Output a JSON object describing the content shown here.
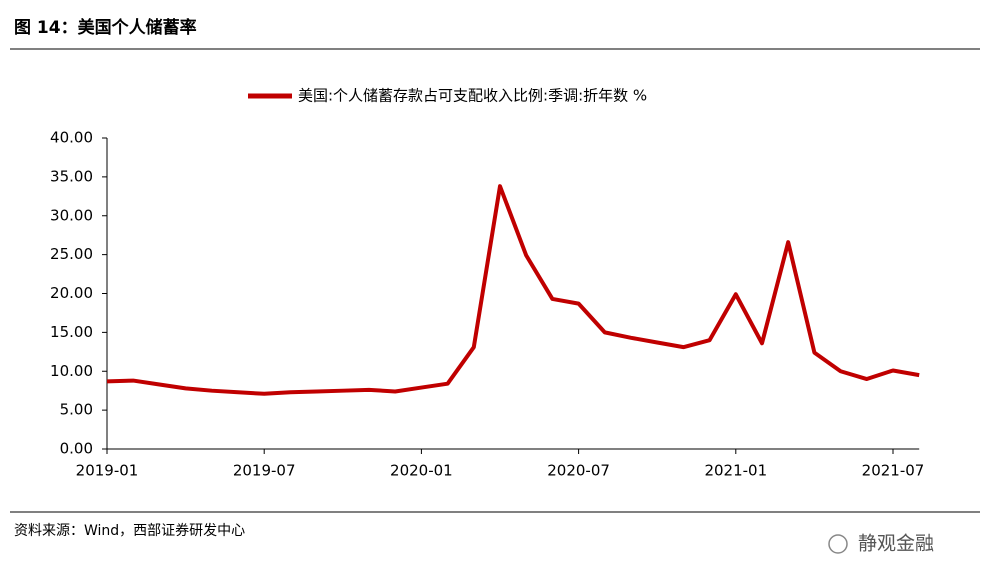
{
  "header": {
    "title": "图 14：美国个人储蓄率"
  },
  "chart_data": {
    "type": "line",
    "categories": [
      "2019-01",
      null,
      null,
      null,
      null,
      null,
      "2019-07",
      null,
      null,
      null,
      null,
      null,
      "2020-01",
      null,
      null,
      null,
      null,
      null,
      "2020-07",
      null,
      null,
      null,
      null,
      null,
      "2021-01",
      null,
      null,
      null,
      null,
      null,
      "2021-07",
      null
    ],
    "series": [
      {
        "name": "美国:个人储蓄存款占可支配收入比例:季调:折年数 %",
        "color": "#c00000",
        "values": [
          8.7,
          8.8,
          8.3,
          7.8,
          7.5,
          7.3,
          7.1,
          7.3,
          7.4,
          7.5,
          7.6,
          7.4,
          7.9,
          8.4,
          13.1,
          33.8,
          24.9,
          19.3,
          18.7,
          15.0,
          14.3,
          13.7,
          13.1,
          14.0,
          19.9,
          13.6,
          26.6,
          12.4,
          10.0,
          9.0,
          10.1,
          9.5
        ]
      }
    ],
    "ylim": [
      0,
      40
    ],
    "yticks": [
      {
        "value": 0,
        "label": "0.00"
      },
      {
        "value": 5,
        "label": "5.00"
      },
      {
        "value": 10,
        "label": "10.00"
      },
      {
        "value": 15,
        "label": "15.00"
      },
      {
        "value": 20,
        "label": "20.00"
      },
      {
        "value": 25,
        "label": "25.00"
      },
      {
        "value": 30,
        "label": "30.00"
      },
      {
        "value": 35,
        "label": "35.00"
      },
      {
        "value": 40,
        "label": "40.00"
      }
    ],
    "legend": "top"
  },
  "footer": {
    "source": "资料来源：Wind，西部证券研发中心",
    "watermark": "静观金融"
  }
}
